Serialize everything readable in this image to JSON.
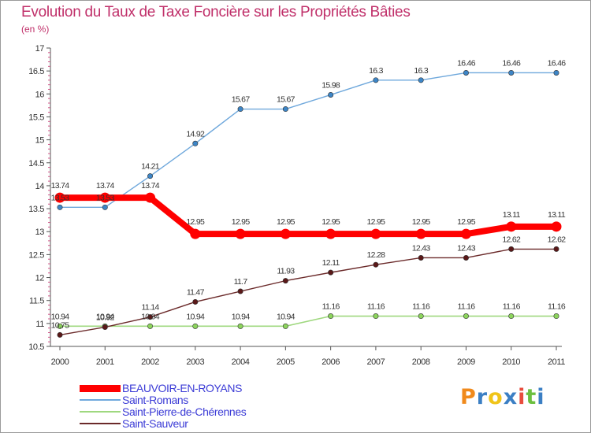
{
  "title": "Evolution du Taux de Taxe Foncière sur les Propriétés Bâties",
  "subtitle": "(en %)",
  "logo_text": "Proxiti",
  "colors": {
    "series": [
      "#ff0000",
      "#6fa8dc",
      "#9fd87f",
      "#6b2a2a"
    ],
    "markers": [
      "#ff0000",
      "#3d85c6",
      "#8cd45c",
      "#5a1818"
    ],
    "title": "#c0306a",
    "legend_text": "#3b3bd6",
    "logo": [
      "#f08a1c",
      "#3b7fc4",
      "#f0c419",
      "#3b7fc4",
      "#e84c3d",
      "#6cbf3f",
      "#3b7fc4"
    ]
  },
  "chart_data": {
    "type": "line",
    "title": "Evolution du Taux de Taxe Foncière sur les Propriétés Bâties",
    "ylabel": "(en %)",
    "x": [
      "2000",
      "2001",
      "2002",
      "2003",
      "2004",
      "2005",
      "2006",
      "2007",
      "2008",
      "2009",
      "2010",
      "2011"
    ],
    "ylim": [
      10.5,
      17
    ],
    "yticks": [
      "10.5",
      "11",
      "11.5",
      "12",
      "12.5",
      "13",
      "13.5",
      "14",
      "14.5",
      "15",
      "15.5",
      "16",
      "16.5",
      "17"
    ],
    "grid": false,
    "legend_position": "bottom-left",
    "series": [
      {
        "name": "BEAUVOIR-EN-ROYANS",
        "values": [
          13.74,
          13.74,
          13.74,
          12.95,
          12.95,
          12.95,
          12.95,
          12.95,
          12.95,
          12.95,
          13.11,
          13.11
        ],
        "labels": [
          "13.74",
          "13.74",
          "13.74",
          "12.95",
          "12.95",
          "12.95",
          "12.95",
          "12.95",
          "12.95",
          "12.95",
          "13.11",
          "13.11"
        ]
      },
      {
        "name": "Saint-Romans",
        "values": [
          13.53,
          13.53,
          14.21,
          14.92,
          15.67,
          15.67,
          15.98,
          16.3,
          16.3,
          16.46,
          16.46,
          16.46
        ],
        "labels": [
          "13.53",
          "13.53",
          "14.21",
          "14.92",
          "15.67",
          "15.67",
          "15.98",
          "16.3",
          "16.3",
          "16.46",
          "16.46",
          "16.46"
        ]
      },
      {
        "name": "Saint-Pierre-de-Chérennes",
        "values": [
          10.94,
          10.94,
          10.94,
          10.94,
          10.94,
          10.94,
          11.16,
          11.16,
          11.16,
          11.16,
          11.16,
          11.16
        ],
        "labels": [
          "10.94",
          "10.94",
          "10.94",
          "10.94",
          "10.94",
          "10.94",
          "11.16",
          "11.16",
          "11.16",
          "11.16",
          "11.16",
          "11.16"
        ]
      },
      {
        "name": "Saint-Sauveur",
        "values": [
          10.75,
          10.92,
          11.14,
          11.47,
          11.7,
          11.93,
          12.11,
          12.28,
          12.43,
          12.43,
          12.62,
          12.62
        ],
        "labels": [
          "10.75",
          "10.92",
          "11.14",
          "11.47",
          "11.7",
          "11.93",
          "12.11",
          "12.28",
          "12.43",
          "12.43",
          "12.62",
          "12.62"
        ]
      }
    ]
  }
}
